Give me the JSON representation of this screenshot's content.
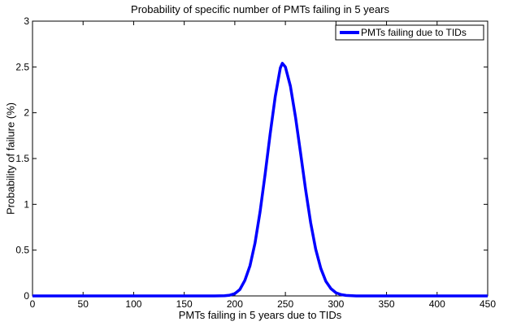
{
  "chart_data": {
    "type": "line",
    "title": "Probability of specific number of PMTs failing in 5 years",
    "xlabel": "PMTs failing in 5 years due to TIDs",
    "ylabel": "Probability of failure (%)",
    "xlim": [
      0,
      450
    ],
    "ylim": [
      0,
      3
    ],
    "xticks": [
      0,
      50,
      100,
      150,
      200,
      250,
      300,
      350,
      400,
      450
    ],
    "yticks": [
      0,
      0.5,
      1,
      1.5,
      2,
      2.5,
      3
    ],
    "grid": false,
    "legend_position": "top-right",
    "series": [
      {
        "name": "PMTs failing due to TIDs",
        "color": "#0000ff",
        "x": [
          0,
          50,
          100,
          150,
          180,
          190,
          195,
          200,
          205,
          210,
          215,
          220,
          225,
          230,
          235,
          240,
          245,
          247,
          250,
          255,
          260,
          265,
          270,
          275,
          280,
          285,
          290,
          295,
          300,
          305,
          310,
          320,
          350,
          400,
          450
        ],
        "y": [
          0,
          0,
          0,
          0,
          0,
          0.002,
          0.008,
          0.025,
          0.07,
          0.17,
          0.33,
          0.58,
          0.92,
          1.33,
          1.77,
          2.18,
          2.49,
          2.54,
          2.5,
          2.29,
          1.95,
          1.56,
          1.16,
          0.8,
          0.51,
          0.3,
          0.16,
          0.08,
          0.035,
          0.014,
          0.005,
          0,
          0,
          0,
          0
        ]
      }
    ]
  }
}
